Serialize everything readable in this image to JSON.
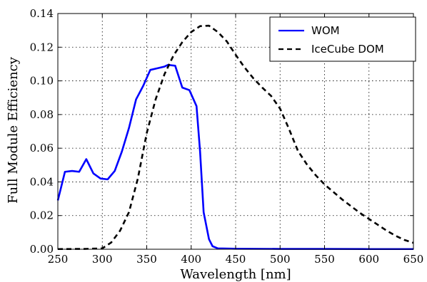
{
  "chart_data": {
    "type": "line",
    "title": "",
    "xlabel": "Wavelength [nm]",
    "ylabel": "Full Module Efficiency",
    "xlim": [
      250,
      650
    ],
    "ylim": [
      0.0,
      0.14
    ],
    "x_ticks": [
      250,
      300,
      350,
      400,
      450,
      500,
      550,
      600,
      650
    ],
    "y_ticks": [
      0.0,
      0.02,
      0.04,
      0.06,
      0.08,
      0.1,
      0.12,
      0.14
    ],
    "x_tick_labels": [
      "250",
      "300",
      "350",
      "400",
      "450",
      "500",
      "550",
      "600",
      "650"
    ],
    "y_tick_labels": [
      "0.00",
      "0.02",
      "0.04",
      "0.06",
      "0.08",
      "0.10",
      "0.12",
      "0.14"
    ],
    "grid": true,
    "grid_style": "dotted",
    "legend_position": "top-right",
    "series": [
      {
        "name": "WOM",
        "color": "#0000ff",
        "style": "solid",
        "points": [
          [
            250,
            0.029
          ],
          [
            258,
            0.046
          ],
          [
            266,
            0.0465
          ],
          [
            274,
            0.046
          ],
          [
            282,
            0.0535
          ],
          [
            290,
            0.045
          ],
          [
            298,
            0.042
          ],
          [
            306,
            0.0415
          ],
          [
            314,
            0.0465
          ],
          [
            322,
            0.058
          ],
          [
            330,
            0.072
          ],
          [
            338,
            0.089
          ],
          [
            346,
            0.097
          ],
          [
            354,
            0.1065
          ],
          [
            362,
            0.1075
          ],
          [
            370,
            0.1085
          ],
          [
            374,
            0.1095
          ],
          [
            382,
            0.109
          ],
          [
            390,
            0.096
          ],
          [
            398,
            0.0945
          ],
          [
            406,
            0.085
          ],
          [
            410,
            0.058
          ],
          [
            414,
            0.022
          ],
          [
            420,
            0.006
          ],
          [
            424,
            0.0018
          ],
          [
            430,
            0.0005
          ],
          [
            450,
            0.0003
          ],
          [
            500,
            0.0002
          ],
          [
            550,
            0.0002
          ],
          [
            600,
            0.0001
          ],
          [
            650,
            0.0001
          ]
        ]
      },
      {
        "name": "IceCube DOM",
        "color": "#000000",
        "style": "dashed",
        "points": [
          [
            250,
            0.0001
          ],
          [
            280,
            0.0002
          ],
          [
            300,
            0.0005
          ],
          [
            310,
            0.004
          ],
          [
            320,
            0.011
          ],
          [
            330,
            0.022
          ],
          [
            340,
            0.042
          ],
          [
            350,
            0.069
          ],
          [
            360,
            0.089
          ],
          [
            370,
            0.104
          ],
          [
            380,
            0.115
          ],
          [
            390,
            0.123
          ],
          [
            400,
            0.129
          ],
          [
            410,
            0.1325
          ],
          [
            420,
            0.1328
          ],
          [
            430,
            0.129
          ],
          [
            440,
            0.1235
          ],
          [
            450,
            0.1155
          ],
          [
            460,
            0.108
          ],
          [
            470,
            0.1015
          ],
          [
            480,
            0.096
          ],
          [
            490,
            0.091
          ],
          [
            500,
            0.0835
          ],
          [
            510,
            0.0715
          ],
          [
            520,
            0.0585
          ],
          [
            530,
            0.0505
          ],
          [
            540,
            0.044
          ],
          [
            550,
            0.0385
          ],
          [
            560,
            0.034
          ],
          [
            570,
            0.0295
          ],
          [
            580,
            0.0255
          ],
          [
            590,
            0.0215
          ],
          [
            600,
            0.018
          ],
          [
            610,
            0.0145
          ],
          [
            620,
            0.011
          ],
          [
            630,
            0.008
          ],
          [
            640,
            0.0055
          ],
          [
            650,
            0.0038
          ]
        ]
      }
    ]
  }
}
